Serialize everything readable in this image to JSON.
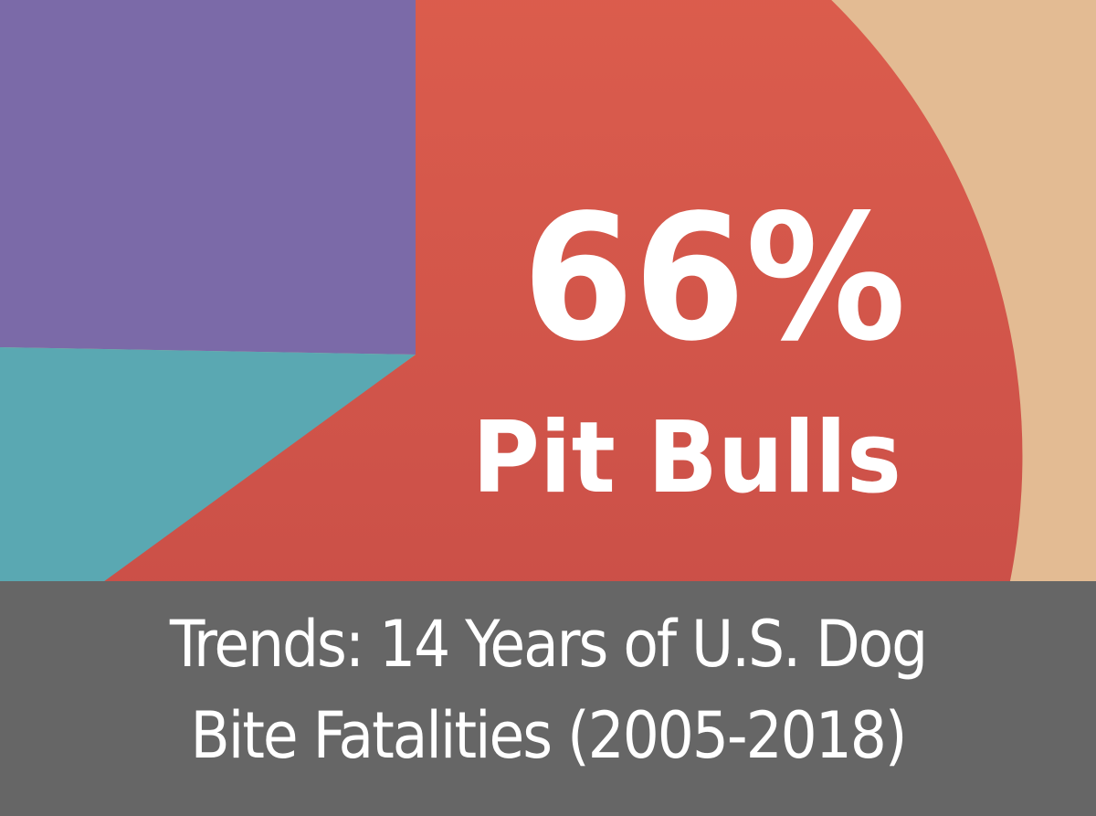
{
  "chart_data": {
    "type": "pie",
    "slices": [
      {
        "label": "Pit Bulls",
        "value": 66,
        "display": "66%",
        "color": "#d85a4a"
      },
      {
        "label": "",
        "value": null,
        "color": "#7b6aa8"
      },
      {
        "label": "",
        "value": null,
        "color": "#5aa8b2"
      },
      {
        "label": "",
        "value": null,
        "color": "#e3bb93"
      }
    ],
    "highlight": {
      "percent_text": "66%",
      "label_text": "Pit Bulls"
    }
  },
  "caption": {
    "line1": "Trends: 14 Years of U.S. Dog",
    "line2": "Bite Fatalities (2005-2018)"
  },
  "colors": {
    "pit_bulls": "#d85a4a",
    "purple": "#7b6aa8",
    "teal": "#5aa8b2",
    "tan": "#e3bb93",
    "caption_bg": "#666666"
  }
}
